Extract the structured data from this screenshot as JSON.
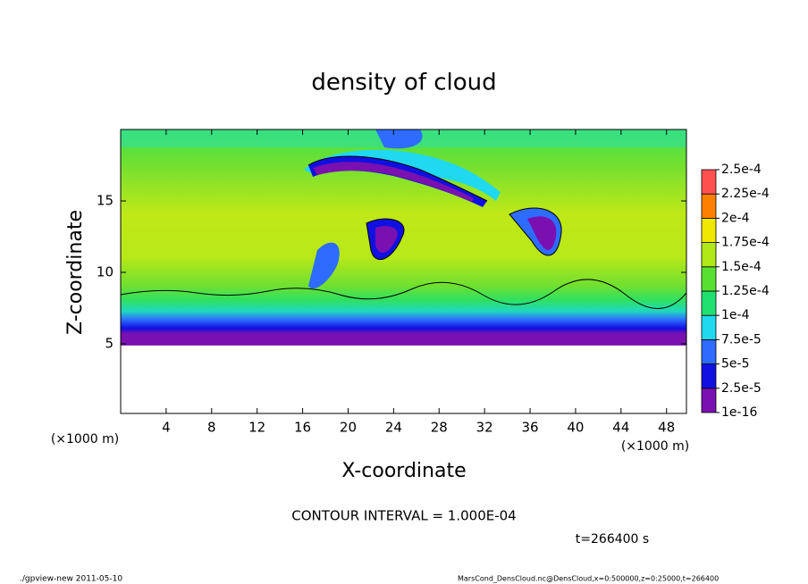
{
  "chart_data": {
    "type": "contour",
    "title": "density of cloud",
    "x_label": "X-coordinate",
    "y_label": "Z-coordinate",
    "x_unit": "(×1000 m)",
    "xlim": [
      0,
      49.75
    ],
    "xticks": [
      4,
      8,
      12,
      16,
      20,
      24,
      28,
      32,
      36,
      40,
      44,
      48
    ],
    "ylim": [
      0.125,
      20
    ],
    "yticks": [
      5,
      10,
      15
    ],
    "levels": [
      {
        "value": 1e-16,
        "label": "1e-16"
      },
      {
        "value": 2.5e-05,
        "label": "2.5e-5"
      },
      {
        "value": 5e-05,
        "label": "5e-5"
      },
      {
        "value": 7.5e-05,
        "label": "7.5e-5"
      },
      {
        "value": 0.0001,
        "label": "1e-4"
      },
      {
        "value": 0.000125,
        "label": "1.25e-4"
      },
      {
        "value": 0.00015,
        "label": "1.5e-4"
      },
      {
        "value": 0.000175,
        "label": "1.75e-4"
      },
      {
        "value": 0.0002,
        "label": "2e-4"
      },
      {
        "value": 0.000225,
        "label": "2.25e-4"
      },
      {
        "value": 0.00025,
        "label": "2.5e-4"
      }
    ],
    "colors": [
      "#7a10b0",
      "#1010e0",
      "#2d6cff",
      "#20d8f0",
      "#20e070",
      "#58e030",
      "#b0e818",
      "#f0e800",
      "#ff8000",
      "#ff5050"
    ],
    "contour_interval": "CONTOUR INTERVAL = 1.000E-04",
    "time_label": "t=266400 s",
    "footer_left": "./gpview-new  2011-05-10",
    "footer_right": "MarsCond_DensCloud.nc@DensCloud,x=0:500000,z=0:25000,t=266400"
  }
}
